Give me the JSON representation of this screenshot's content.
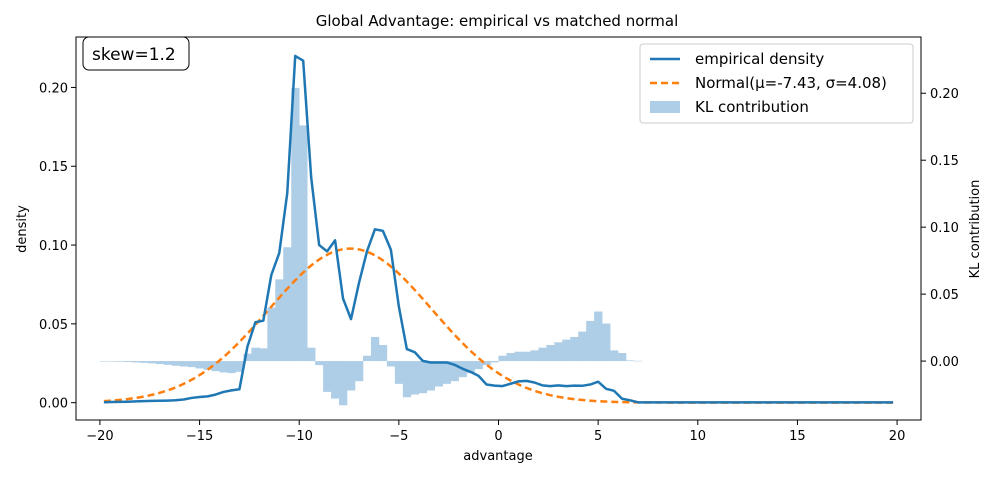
{
  "chart_data": {
    "type": "line",
    "title": "Global Advantage: empirical vs matched normal",
    "xlabel": "advantage",
    "ylabel": "density",
    "y2label": "KL contribution",
    "xlim": [
      -21.2,
      21.2
    ],
    "ylim": [
      -0.011,
      0.232
    ],
    "y2lim": [
      -0.044,
      0.242
    ],
    "xticks": [
      -20,
      -15,
      -10,
      -5,
      0,
      5,
      10,
      15,
      20
    ],
    "xtick_labels": [
      "−20",
      "−15",
      "−10",
      "−5",
      "0",
      "5",
      "10",
      "15",
      "20"
    ],
    "yticks": [
      0.0,
      0.05,
      0.1,
      0.15,
      0.2
    ],
    "ytick_labels": [
      "0.00",
      "0.05",
      "0.10",
      "0.15",
      "0.20"
    ],
    "y2ticks": [
      0.0,
      0.05,
      0.1,
      0.15,
      0.2
    ],
    "y2tick_labels": [
      "0.00",
      "0.05",
      "0.10",
      "0.15",
      "0.20"
    ],
    "legend": {
      "position": "top-right",
      "entries": [
        "empirical density",
        "Normal(μ=-7.43, σ=4.08)",
        "KL contribution"
      ]
    },
    "annotation": "skew=1.2",
    "colors": {
      "empirical": "#1f77b4",
      "normal": "#ff7f0e",
      "kl": "#aecde6"
    },
    "series": [
      {
        "name": "empirical density",
        "x": [
          -19.8,
          -19.4,
          -19.0,
          -18.6,
          -18.2,
          -17.8,
          -17.4,
          -17.0,
          -16.6,
          -16.2,
          -15.8,
          -15.4,
          -15.0,
          -14.6,
          -14.2,
          -13.8,
          -13.4,
          -13.0,
          -12.6,
          -12.2,
          -11.8,
          -11.4,
          -11.0,
          -10.6,
          -10.2,
          -9.8,
          -9.4,
          -9.0,
          -8.6,
          -8.2,
          -7.8,
          -7.4,
          -7.0,
          -6.6,
          -6.2,
          -5.8,
          -5.4,
          -5.0,
          -4.6,
          -4.2,
          -3.8,
          -3.4,
          -3.0,
          -2.6,
          -2.2,
          -1.8,
          -1.4,
          -1.0,
          -0.6,
          -0.2,
          0.2,
          0.6,
          1.0,
          1.4,
          1.8,
          2.2,
          2.6,
          3.0,
          3.4,
          3.8,
          4.2,
          4.6,
          5.0,
          5.4,
          5.8,
          6.2,
          6.6,
          7.0,
          19.8
        ],
        "y": [
          0.0003,
          0.0004,
          0.0005,
          0.0006,
          0.0008,
          0.001,
          0.0011,
          0.0012,
          0.0013,
          0.0015,
          0.002,
          0.003,
          0.0036,
          0.004,
          0.0051,
          0.0068,
          0.0078,
          0.0085,
          0.0355,
          0.051,
          0.052,
          0.081,
          0.095,
          0.133,
          0.22,
          0.217,
          0.143,
          0.1,
          0.096,
          0.103,
          0.066,
          0.053,
          0.076,
          0.096,
          0.11,
          0.109,
          0.097,
          0.061,
          0.034,
          0.032,
          0.0265,
          0.0255,
          0.0255,
          0.0255,
          0.024,
          0.0215,
          0.0195,
          0.017,
          0.0115,
          0.0108,
          0.0105,
          0.012,
          0.0135,
          0.0138,
          0.0128,
          0.011,
          0.0105,
          0.011,
          0.0105,
          0.0108,
          0.0107,
          0.0115,
          0.0133,
          0.0088,
          0.0075,
          0.0025,
          0.0015,
          0.0002,
          0.0002
        ]
      },
      {
        "name": "Normal(μ=-7.43, σ=4.08)",
        "mu": -7.43,
        "sigma": 4.08,
        "x_range": [
          -19.8,
          19.8
        ]
      },
      {
        "name": "KL contribution",
        "bin_width": 0.4,
        "x": [
          -19.8,
          -19.4,
          -19.0,
          -18.6,
          -18.2,
          -17.8,
          -17.4,
          -17.0,
          -16.6,
          -16.2,
          -15.8,
          -15.4,
          -15.0,
          -14.6,
          -14.2,
          -13.8,
          -13.4,
          -13.0,
          -12.6,
          -12.2,
          -11.8,
          -11.4,
          -11.0,
          -10.6,
          -10.2,
          -9.8,
          -9.4,
          -9.0,
          -8.6,
          -8.2,
          -7.8,
          -7.4,
          -7.0,
          -6.6,
          -6.2,
          -5.8,
          -5.4,
          -5.0,
          -4.6,
          -4.2,
          -3.8,
          -3.4,
          -3.0,
          -2.6,
          -2.2,
          -1.8,
          -1.4,
          -1.0,
          -0.6,
          -0.2,
          0.2,
          0.6,
          1.0,
          1.4,
          1.8,
          2.2,
          2.6,
          3.0,
          3.4,
          3.8,
          4.2,
          4.6,
          5.0,
          5.4,
          5.8,
          6.2,
          6.6,
          7.0
        ],
        "values": [
          -0.0002,
          -0.0003,
          -0.0005,
          -0.0007,
          -0.001,
          -0.0013,
          -0.0017,
          -0.0022,
          -0.0028,
          -0.0035,
          -0.004,
          -0.0045,
          -0.0055,
          -0.0065,
          -0.0075,
          -0.0085,
          -0.009,
          -0.008,
          0.0055,
          0.01,
          0.0095,
          0.04,
          0.061,
          0.085,
          0.204,
          0.176,
          0.01,
          -0.003,
          -0.023,
          -0.028,
          -0.033,
          -0.022,
          -0.015,
          0.004,
          0.018,
          0.012,
          -0.004,
          -0.017,
          -0.027,
          -0.025,
          -0.024,
          -0.022,
          -0.019,
          -0.017,
          -0.015,
          -0.012,
          -0.009,
          -0.006,
          -0.003,
          -0.001,
          0.004,
          0.006,
          0.007,
          0.007,
          0.008,
          0.01,
          0.012,
          0.014,
          0.016,
          0.018,
          0.022,
          0.03,
          0.037,
          0.028,
          0.008,
          0.006,
          0.0005,
          0.0002
        ]
      }
    ]
  }
}
